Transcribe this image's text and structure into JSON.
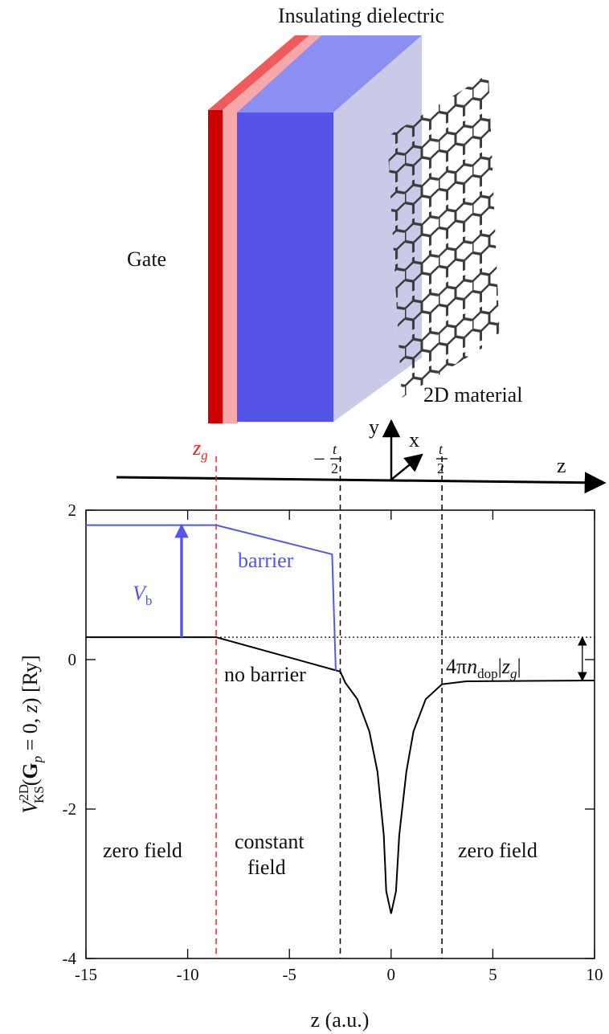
{
  "diagram": {
    "dielectric_label": "Insulating dielectric",
    "gate_label": "Gate",
    "material_label": "2D material",
    "axis_y": "y",
    "axis_x": "x",
    "axis_z": "z",
    "zg_label": [
      "z",
      "g"
    ],
    "minus_half_t": [
      "−",
      "t",
      "2"
    ],
    "half_t": [
      "t",
      "2"
    ]
  },
  "chart_data": {
    "type": "line",
    "xlabel": "z (a.u.)",
    "ylabel": [
      "V",
      "2D",
      "KS",
      "(",
      "G",
      "p",
      " = 0, ",
      "z",
      ") [Ry]"
    ],
    "xlim": [
      -15,
      10
    ],
    "ylim": [
      -4,
      2
    ],
    "xticks": [
      -15,
      -10,
      -5,
      0,
      5,
      10
    ],
    "yticks": [
      -4,
      -2,
      0,
      2
    ],
    "series": [
      {
        "name": "no barrier",
        "color": "#000000",
        "x": [
          -15,
          -8.6,
          -2.5,
          -2.25,
          -1.66,
          -1.07,
          -0.67,
          -0.36,
          -0.24,
          0,
          0.24,
          0.4,
          0.75,
          1.1,
          1.7,
          2.5,
          3.7,
          10
        ],
        "values": [
          0.3,
          0.3,
          -0.16,
          -0.31,
          -0.53,
          -0.96,
          -1.5,
          -2.35,
          -3.1,
          -3.4,
          -3.1,
          -2.35,
          -1.5,
          -0.96,
          -0.53,
          -0.33,
          -0.29,
          -0.28
        ]
      },
      {
        "name": "barrier",
        "color": "#5555ee",
        "x": [
          -15,
          -8.6,
          -2.9,
          -2.72
        ],
        "values": [
          1.8,
          1.8,
          1.41,
          -0.15
        ]
      }
    ],
    "vlines": [
      {
        "x": -8.6,
        "color": "#e8242a"
      },
      {
        "x": -2.5,
        "color": "#000000"
      },
      {
        "x": 2.5,
        "color": "#000000"
      }
    ],
    "hline": {
      "y": 0.3,
      "from": -8.6
    },
    "vb_arrow": {
      "x": -10.3,
      "from": 0.3,
      "to": 1.8,
      "label": [
        "V",
        "b"
      ]
    },
    "dop_arrow": {
      "x": 9.4,
      "from": 0.3,
      "to": -0.28,
      "label": [
        "4π",
        "n",
        "dop",
        "|",
        "z",
        "g",
        "|"
      ]
    },
    "annotations": [
      "zero field",
      "constant",
      "field",
      "zero field"
    ]
  }
}
